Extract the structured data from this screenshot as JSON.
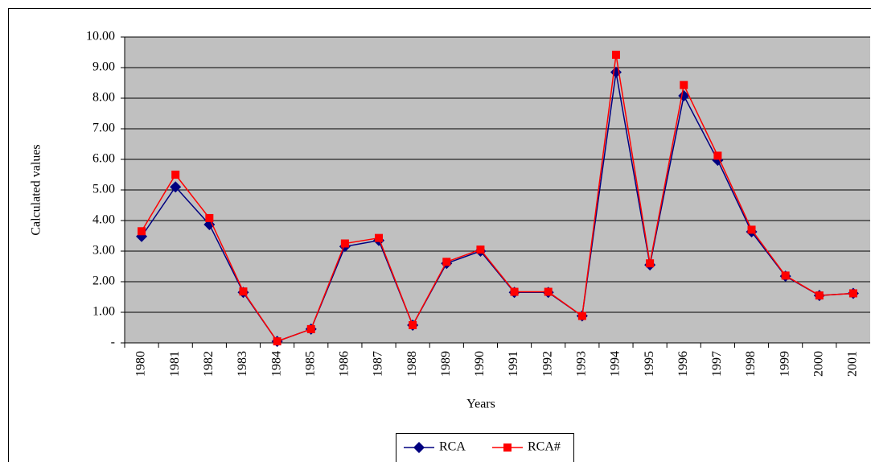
{
  "chart_data": {
    "type": "line",
    "x_label": "Years",
    "y_label": "Calculated values",
    "categories": [
      "1980",
      "1981",
      "1982",
      "1983",
      "1984",
      "1985",
      "1986",
      "1987",
      "1988",
      "1989",
      "1990",
      "1991",
      "1992",
      "1993",
      "1994",
      "1995",
      "1996",
      "1997",
      "1998",
      "1999",
      "2000",
      "2001"
    ],
    "series": [
      {
        "name": "RCA",
        "color": "#000080",
        "marker": "diamond",
        "values": [
          3.48,
          5.1,
          3.87,
          1.65,
          0.05,
          0.45,
          3.15,
          3.35,
          0.58,
          2.6,
          3.0,
          1.65,
          1.65,
          0.88,
          8.85,
          2.55,
          8.08,
          5.97,
          3.63,
          2.18,
          1.55,
          1.62
        ]
      },
      {
        "name": "RCA#",
        "color": "#ff0000",
        "marker": "square",
        "values": [
          3.65,
          5.5,
          4.08,
          1.68,
          0.05,
          0.45,
          3.25,
          3.43,
          0.58,
          2.65,
          3.05,
          1.67,
          1.67,
          0.88,
          9.42,
          2.6,
          8.43,
          6.12,
          3.7,
          2.2,
          1.55,
          1.62
        ]
      }
    ],
    "ylim": [
      0,
      10
    ],
    "yticks": [
      {
        "value": 0,
        "label": "-"
      },
      {
        "value": 1,
        "label": "1.00"
      },
      {
        "value": 2,
        "label": "2.00"
      },
      {
        "value": 3,
        "label": "3.00"
      },
      {
        "value": 4,
        "label": "4.00"
      },
      {
        "value": 5,
        "label": "5.00"
      },
      {
        "value": 6,
        "label": "6.00"
      },
      {
        "value": 7,
        "label": "7.00"
      },
      {
        "value": 8,
        "label": "8.00"
      },
      {
        "value": 9,
        "label": "9.00"
      },
      {
        "value": 10,
        "label": "10.00"
      }
    ],
    "grid": true,
    "plot_background": "#c0c0c0",
    "legend": "bottom"
  }
}
